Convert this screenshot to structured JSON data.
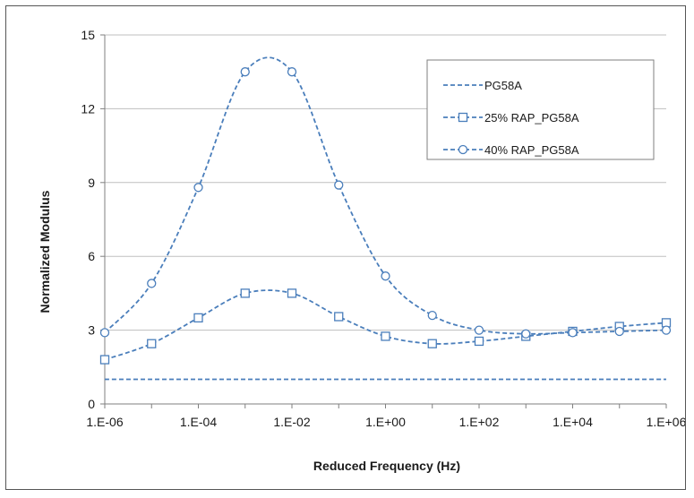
{
  "colors": {
    "series": "#4a7ebb",
    "grid": "#bfbfbf",
    "axis": "#7f7f7f",
    "text": "#1a1a1a",
    "frame": "#555555"
  },
  "chart_data": {
    "type": "line",
    "title": "",
    "xlabel": "Reduced Frequency (Hz)",
    "ylabel": "Normalized Modulus",
    "x_scale": "log",
    "x_ticks": [
      "1.E-06",
      "1.E-04",
      "1.E-02",
      "1.E+00",
      "1.E+02",
      "1.E+04",
      "1.E+06"
    ],
    "y_ticks": [
      "0",
      "3",
      "6",
      "9",
      "12",
      "15"
    ],
    "xlim": [
      1e-06,
      1000000.0
    ],
    "ylim": [
      0,
      15
    ],
    "grid": "horizontal",
    "legend_position": "top-right",
    "x": [
      1e-06,
      1e-05,
      0.0001,
      0.001,
      0.01,
      0.1,
      1.0,
      10.0,
      100.0,
      1000.0,
      10000.0,
      100000.0,
      1000000.0
    ],
    "series": [
      {
        "name": "PG58A",
        "marker": "none",
        "dash": "dashed",
        "values": [
          1,
          1,
          1,
          1,
          1,
          1,
          1,
          1,
          1,
          1,
          1,
          1,
          1
        ]
      },
      {
        "name": "25% RAP_PG58A",
        "marker": "square",
        "dash": "dashed",
        "values": [
          1.8,
          2.45,
          3.5,
          4.5,
          4.5,
          3.55,
          2.75,
          2.45,
          2.55,
          2.75,
          2.95,
          3.15,
          3.3
        ]
      },
      {
        "name": "40% RAP_PG58A",
        "marker": "circle",
        "dash": "dashed",
        "values": [
          2.9,
          4.9,
          8.8,
          13.5,
          13.5,
          8.9,
          5.2,
          3.6,
          3.0,
          2.85,
          2.9,
          2.95,
          3.0
        ]
      }
    ]
  }
}
